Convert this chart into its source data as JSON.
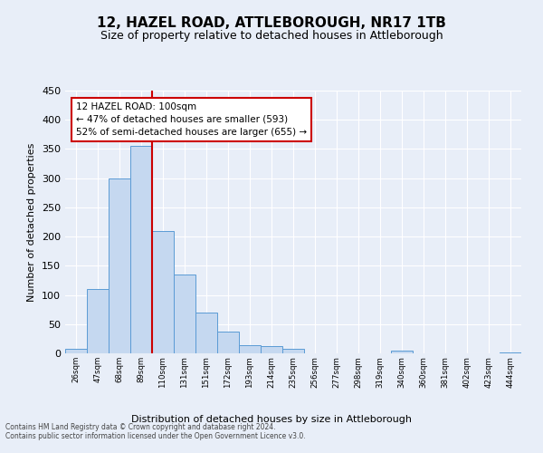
{
  "title": "12, HAZEL ROAD, ATTLEBOROUGH, NR17 1TB",
  "subtitle": "Size of property relative to detached houses in Attleborough",
  "xlabel": "Distribution of detached houses by size in Attleborough",
  "ylabel": "Number of detached properties",
  "bin_labels": [
    "26sqm",
    "47sqm",
    "68sqm",
    "89sqm",
    "110sqm",
    "131sqm",
    "151sqm",
    "172sqm",
    "193sqm",
    "214sqm",
    "235sqm",
    "256sqm",
    "277sqm",
    "298sqm",
    "319sqm",
    "340sqm",
    "360sqm",
    "381sqm",
    "402sqm",
    "423sqm",
    "444sqm"
  ],
  "bar_heights": [
    8,
    110,
    300,
    355,
    210,
    135,
    70,
    37,
    14,
    12,
    8,
    0,
    0,
    0,
    0,
    5,
    0,
    0,
    0,
    0,
    2
  ],
  "bar_color": "#c5d8f0",
  "bar_edge_color": "#5b9bd5",
  "red_line_x": 4,
  "ylim": [
    0,
    450
  ],
  "yticks": [
    0,
    50,
    100,
    150,
    200,
    250,
    300,
    350,
    400,
    450
  ],
  "annotation_title": "12 HAZEL ROAD: 100sqm",
  "annotation_line1": "← 47% of detached houses are smaller (593)",
  "annotation_line2": "52% of semi-detached houses are larger (655) →",
  "annotation_box_color": "#ffffff",
  "annotation_box_edge": "#cc0000",
  "red_line_color": "#cc0000",
  "footnote1": "Contains HM Land Registry data © Crown copyright and database right 2024.",
  "footnote2": "Contains public sector information licensed under the Open Government Licence v3.0.",
  "bg_color": "#e8eef8",
  "plot_bg_color": "#e8eef8",
  "title_fontsize": 11,
  "subtitle_fontsize": 9
}
